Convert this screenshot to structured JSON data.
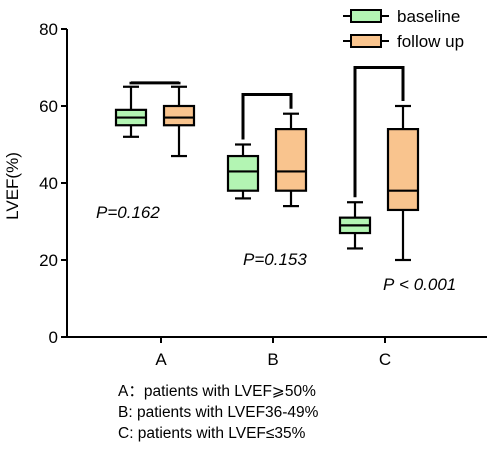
{
  "chart_data": {
    "type": "boxplot",
    "ylabel": "LVEF(%)",
    "ylim": [
      0,
      80
    ],
    "yticks": [
      "0",
      "20",
      "40",
      "60",
      "80"
    ],
    "categories": [
      "A",
      "B",
      "C"
    ],
    "legend": {
      "placement": "top-right",
      "items": [
        {
          "name": "baseline",
          "color": "#b3f5b3"
        },
        {
          "name": "follow up",
          "color": "#f9c48e"
        }
      ]
    },
    "series": [
      {
        "name": "baseline",
        "color": "#b3f5b3",
        "boxes": [
          {
            "min": 52,
            "q1": 55,
            "median": 57,
            "q3": 59,
            "max": 65
          },
          {
            "min": 36,
            "q1": 38,
            "median": 43,
            "q3": 47,
            "max": 50
          },
          {
            "min": 23,
            "q1": 27,
            "median": 29,
            "q3": 31,
            "max": 35
          }
        ]
      },
      {
        "name": "follow up",
        "color": "#f9c48e",
        "boxes": [
          {
            "min": 47,
            "q1": 55,
            "median": 57,
            "q3": 60,
            "max": 65
          },
          {
            "min": 34,
            "q1": 38,
            "median": 43,
            "q3": 54,
            "max": 58
          },
          {
            "min": 20,
            "q1": 33,
            "median": 38,
            "q3": 54,
            "max": 60
          }
        ]
      }
    ],
    "annotations": [
      {
        "group": "A",
        "text": "P=0.162",
        "bracket_y": 66
      },
      {
        "group": "B",
        "text": "P=0.153",
        "bracket_y": 63
      },
      {
        "group": "C",
        "text": "P < 0.001",
        "bracket_y": 70
      }
    ]
  },
  "notes": [
    "A：patients with LVEF⩾50%",
    "B: patients with LVEF36-49%",
    "C: patients with LVEF≤35%"
  ]
}
